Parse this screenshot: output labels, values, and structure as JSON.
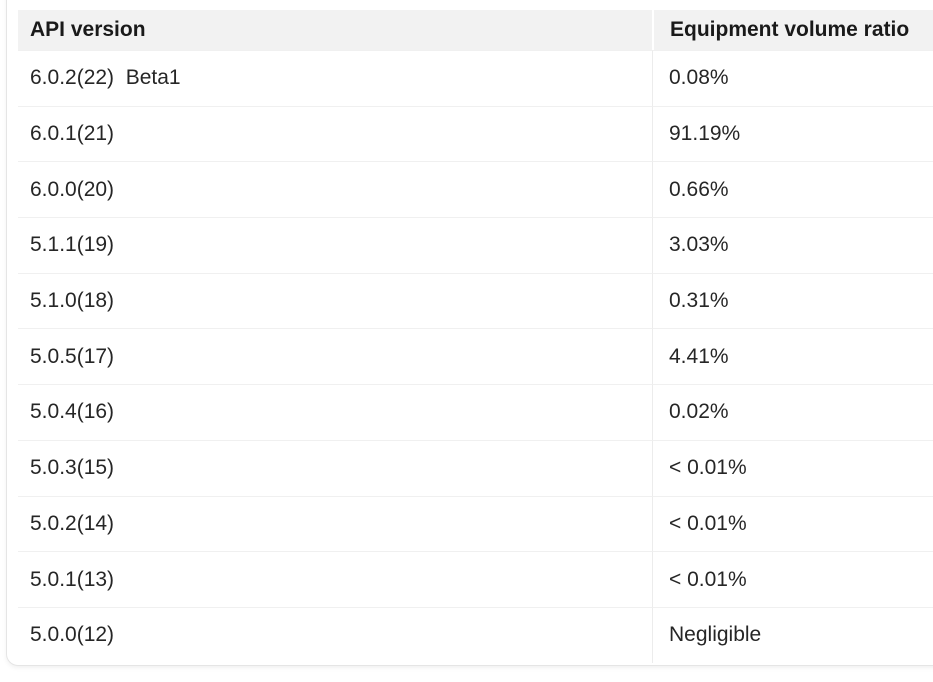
{
  "table": {
    "columns": [
      {
        "key": "version",
        "label": "API version"
      },
      {
        "key": "ratio",
        "label": "Equipment volume ratio"
      }
    ],
    "rows": [
      {
        "version": "6.0.2(22)  Beta1",
        "ratio": "0.08%"
      },
      {
        "version": "6.0.1(21)",
        "ratio": "91.19%"
      },
      {
        "version": "6.0.0(20)",
        "ratio": "0.66%"
      },
      {
        "version": "5.1.1(19)",
        "ratio": "3.03%"
      },
      {
        "version": "5.1.0(18)",
        "ratio": "0.31%"
      },
      {
        "version": "5.0.5(17)",
        "ratio": "4.41%"
      },
      {
        "version": "5.0.4(16)",
        "ratio": "0.02%"
      },
      {
        "version": "5.0.3(15)",
        "ratio": "< 0.01%"
      },
      {
        "version": "5.0.2(14)",
        "ratio": "< 0.01%"
      },
      {
        "version": "5.0.1(13)",
        "ratio": "< 0.01%"
      },
      {
        "version": "5.0.0(12)",
        "ratio": "Negligible"
      }
    ]
  },
  "colors": {
    "header_background": "#f2f2f2",
    "header_text": "#1a1a1a",
    "body_text": "#262626",
    "row_separator": "#f0f0f0",
    "column_divider": "#ececec",
    "card_border": "#e5e5e5",
    "card_background": "#ffffff"
  }
}
